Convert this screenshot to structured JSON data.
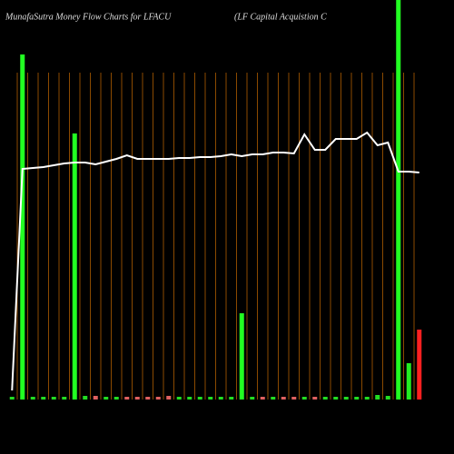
{
  "chart_data": {
    "type": "bar",
    "title": "MunafaSutra  Money Flow  Charts for LFACU",
    "subtitle": "(LF Capital Acquistion  C",
    "categories": [
      null,
      null,
      null,
      null,
      null,
      null,
      null,
      null,
      null,
      null,
      null,
      null,
      null,
      null,
      null,
      null,
      null,
      null,
      null,
      null,
      null,
      null,
      null,
      null,
      null,
      null,
      null,
      null,
      null,
      null,
      null,
      null,
      null,
      null,
      null,
      null,
      null,
      null,
      null,
      null
    ],
    "values": [
      3,
      380,
      3,
      3,
      3,
      3,
      293,
      4,
      4,
      3,
      3,
      3,
      3,
      3,
      3,
      4,
      3,
      3,
      3,
      3,
      3,
      3,
      95,
      3,
      3,
      3,
      3,
      3,
      3,
      3,
      3,
      3,
      3,
      3,
      3,
      5,
      4,
      440,
      40,
      77
    ],
    "colors": [
      "#22dd22",
      "#22ff22",
      "#22dd22",
      "#22dd22",
      "#22dd22",
      "#22dd22",
      "#22ff22",
      "#22dd22",
      "#e06060",
      "#22dd22",
      "#22dd22",
      "#e06060",
      "#e06060",
      "#e06060",
      "#e06060",
      "#e06060",
      "#22dd22",
      "#22dd22",
      "#22dd22",
      "#22dd22",
      "#22dd22",
      "#22dd22",
      "#22ff22",
      "#22dd22",
      "#e06060",
      "#22dd22",
      "#e06060",
      "#e06060",
      "#22dd22",
      "#e06060",
      "#22dd22",
      "#22dd22",
      "#22dd22",
      "#22dd22",
      "#22dd22",
      "#22dd22",
      "#22dd22",
      "#22ff22",
      "#22ee22",
      "#ff2020"
    ],
    "line_values": [
      10,
      254,
      255,
      256,
      258,
      260,
      261,
      261,
      259,
      262,
      265,
      269,
      265,
      265,
      265,
      265,
      266,
      266,
      267,
      267,
      268,
      270,
      268,
      270,
      270,
      272,
      272,
      271,
      292,
      275,
      275,
      287,
      287,
      287,
      294,
      280,
      283,
      251,
      251,
      250
    ],
    "line_color": "#ffffff",
    "ylim": [
      0,
      440
    ]
  }
}
